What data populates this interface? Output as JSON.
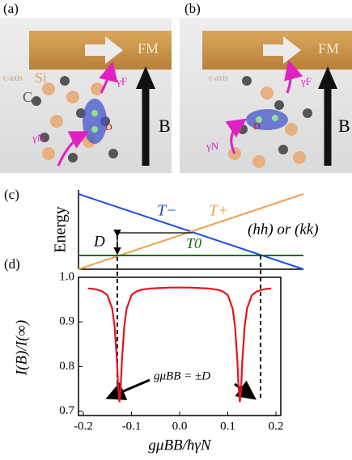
{
  "panel_a": {
    "label": "(a)",
    "fm": "FM",
    "c_axis": "c-axis",
    "si": "Si",
    "c": "C",
    "gamma_f": "γF",
    "gamma_n": "γN",
    "d": "D",
    "b": "B"
  },
  "panel_b": {
    "label": "(b)",
    "fm": "FM",
    "c_axis": "c-axis",
    "gamma_f": "γF",
    "gamma_n": "γN",
    "d": "D",
    "b": "B"
  },
  "panel_c": {
    "label": "(c)",
    "ylabel": "Energy",
    "t_minus": "T−",
    "t_plus": "T+",
    "t_zero": "T0",
    "d": "D",
    "note": "(hh) or (kk)"
  },
  "chart_data": {
    "type": "line",
    "label": "(d)",
    "xlabel": "gμBB/ħγN",
    "ylabel": "I(B)/I(∞)",
    "annotation": "gμBB = ±D",
    "x": [
      -0.19,
      -0.18,
      -0.17,
      -0.16,
      -0.15,
      -0.14,
      -0.135,
      -0.13,
      -0.128,
      -0.125,
      -0.122,
      -0.12,
      -0.115,
      -0.11,
      -0.1,
      -0.09,
      -0.08,
      -0.06,
      -0.04,
      -0.02,
      0,
      0.02,
      0.04,
      0.06,
      0.08,
      0.09,
      0.1,
      0.11,
      0.115,
      0.12,
      0.122,
      0.125,
      0.128,
      0.13,
      0.135,
      0.14,
      0.15,
      0.16,
      0.17,
      0.18,
      0.19
    ],
    "series": [
      {
        "color": "#e8121b",
        "values": [
          0.975,
          0.974,
          0.972,
          0.968,
          0.96,
          0.93,
          0.89,
          0.81,
          0.76,
          0.72,
          0.76,
          0.81,
          0.89,
          0.93,
          0.96,
          0.968,
          0.972,
          0.975,
          0.976,
          0.977,
          0.977,
          0.977,
          0.976,
          0.975,
          0.972,
          0.968,
          0.96,
          0.93,
          0.89,
          0.81,
          0.76,
          0.72,
          0.76,
          0.81,
          0.89,
          0.93,
          0.96,
          0.968,
          0.972,
          0.974,
          0.975
        ]
      }
    ],
    "xlim": [
      -0.21,
      0.21
    ],
    "ylim": [
      0.69,
      1.0
    ],
    "xticks": [
      -0.2,
      -0.1,
      {
        "value": 0,
        "label": "0.0"
      },
      0.1,
      0.2
    ],
    "yticks": [
      0.7,
      0.8,
      0.9,
      {
        "value": 1.0,
        "label": "1.0"
      }
    ],
    "grid": false
  }
}
